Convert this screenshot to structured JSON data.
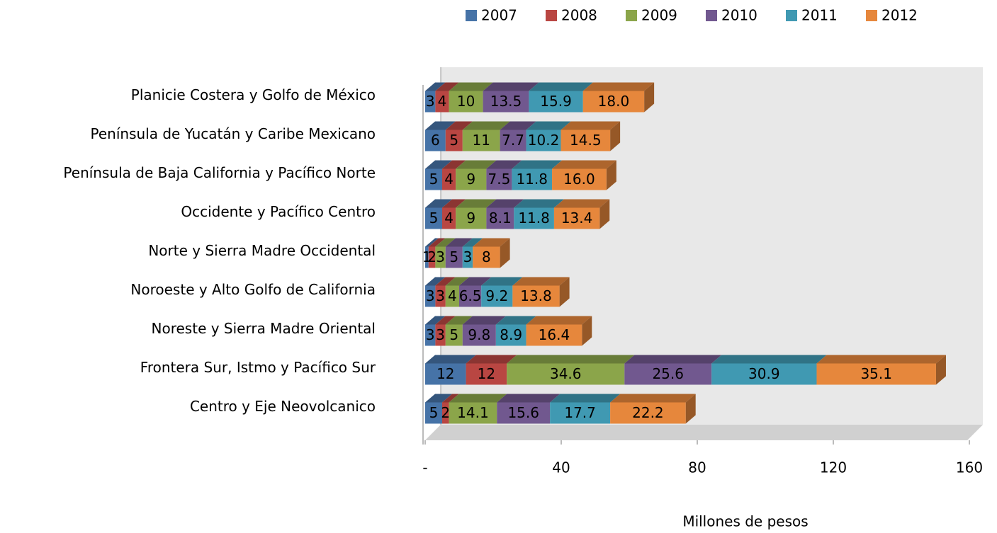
{
  "chart_data": {
    "type": "bar",
    "orientation": "horizontal",
    "stacked": true,
    "x_label": "Millones de pesos",
    "categories": [
      "Planicie Costera y Golfo de México",
      "Península de Yucatán y Caribe Mexicano",
      "Península de Baja California y Pacífico Norte",
      "Occidente y Pacífico Centro",
      "Norte y Sierra Madre Occidental",
      "Noroeste y Alto Golfo de California",
      "Noreste y Sierra Madre Oriental",
      "Frontera Sur, Istmo y Pacífico Sur",
      "Centro y Eje Neovolcanico"
    ],
    "series": [
      {
        "name": "2007",
        "color": "#4673a7",
        "values": [
          3,
          6,
          5,
          5,
          1,
          3,
          3,
          12,
          5
        ]
      },
      {
        "name": "2008",
        "color": "#b94642",
        "values": [
          4,
          5,
          4,
          4,
          2,
          3,
          3,
          12,
          2
        ]
      },
      {
        "name": "2009",
        "color": "#8ba54a",
        "values": [
          10,
          11,
          9,
          9,
          3,
          4,
          5,
          34.6,
          14.1
        ]
      },
      {
        "name": "2010",
        "color": "#71588f",
        "values": [
          13.5,
          7.7,
          7.5,
          8.1,
          5,
          6.5,
          9.8,
          25.6,
          15.6
        ]
      },
      {
        "name": "2011",
        "color": "#4099b2",
        "values": [
          15.9,
          10.2,
          11.8,
          11.8,
          3,
          9.2,
          8.9,
          30.9,
          17.7
        ]
      },
      {
        "name": "2012",
        "color": "#e6873c",
        "values": [
          18,
          14.5,
          16,
          13.4,
          8,
          13.8,
          16.4,
          35.1,
          22.2
        ],
        "value_labels": [
          "18.0",
          "14.5",
          "16.0",
          "13.4",
          "8",
          "13.8",
          "16.4",
          "35.1",
          "22.2"
        ]
      }
    ],
    "xlim": [
      0,
      160
    ],
    "xticks": [
      {
        "value": 0,
        "label": "-"
      },
      40,
      80,
      120,
      160
    ],
    "legend": "top"
  }
}
